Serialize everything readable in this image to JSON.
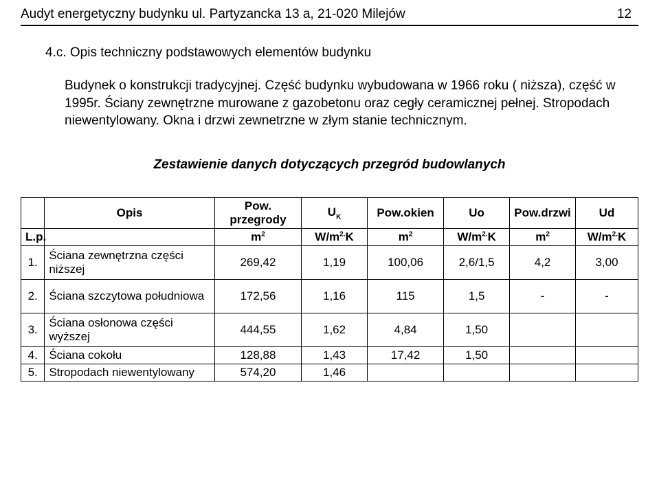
{
  "header": {
    "title": "Audyt energetyczny budynku ul. Partyzancka 13 a, 21-020 Milejów",
    "page_number": "12"
  },
  "section": {
    "number_title": "4.c. Opis techniczny podstawowych elementów budynku",
    "paragraph": "Budynek o konstrukcji tradycyjnej. Część budynku wybudowana w 1966 roku ( niższa), część w 1995r. Ściany zewnętrzne murowane z gazobetonu oraz cegły ceramicznej pełnej. Stropodach niewentylowany. Okna i drzwi zewnetrzne w złym stanie technicznym."
  },
  "table": {
    "title": "Zestawienie danych dotyczących przegród budowlanych",
    "head_row1": {
      "opis": "Opis",
      "a": "Pow. przegrody",
      "b": "U",
      "b_sub": "K",
      "c": "Pow.okien",
      "d": "Uo",
      "e": "Pow.drzwi",
      "f": "Ud"
    },
    "head_row2": {
      "lp": "L.p.",
      "a": "m",
      "b": "W/m",
      "c": "m",
      "d": "W/m",
      "e": "m",
      "f": "W/m",
      "sup2": "2",
      "k_suffix": "K",
      "dot": "."
    },
    "rows": [
      {
        "lp": "1.",
        "opis": "Ściana zewnętrzna części niższej",
        "a": "269,42",
        "b": "1,19",
        "c": "100,06",
        "d": "2,6/1,5",
        "e": "4,2",
        "f": "3,00"
      },
      {
        "lp": "2.",
        "opis": "Ściana szczytowa południowa",
        "a": "172,56",
        "b": "1,16",
        "c": "115",
        "d": "1,5",
        "e": "-",
        "f": "-"
      },
      {
        "lp": "3.",
        "opis": "Ściana osłonowa części wyższej",
        "a": "444,55",
        "b": "1,62",
        "c": "4,84",
        "d": "1,50",
        "e": "",
        "f": ""
      },
      {
        "lp": "4.",
        "opis": "Ściana cokołu",
        "a": "128,88",
        "b": "1,43",
        "c": "17,42",
        "d": "1,50",
        "e": "",
        "f": ""
      },
      {
        "lp": "5.",
        "opis": "Stropodach niewentylowany",
        "a": "574,20",
        "b": "1,46",
        "c": "",
        "d": "",
        "e": "",
        "f": ""
      }
    ]
  }
}
